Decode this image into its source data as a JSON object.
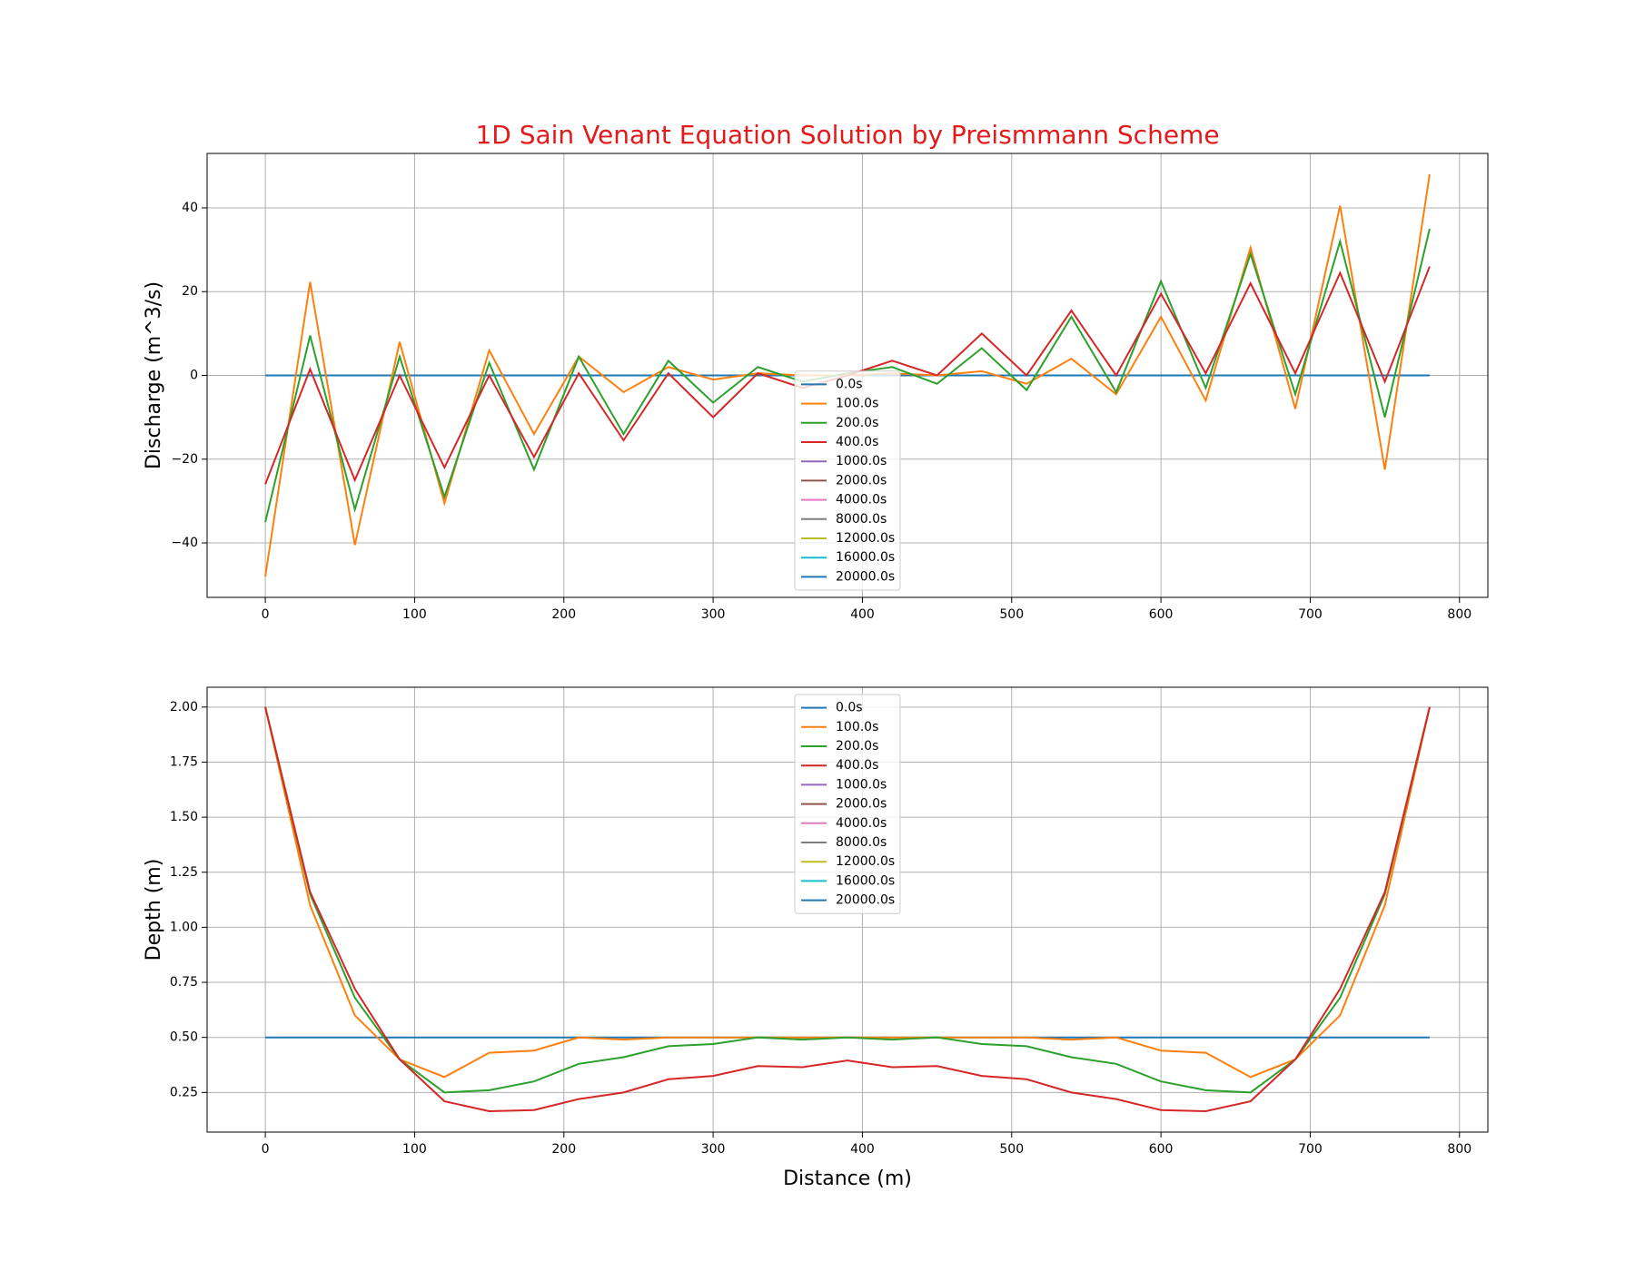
{
  "chart_data": [
    {
      "type": "line",
      "title": "1D Sain Venant Equation Solution by Preismmann Scheme",
      "ylabel": "Discharge (m^3/s)",
      "x": [
        0,
        30,
        60,
        90,
        120,
        150,
        180,
        210,
        240,
        270,
        300,
        330,
        360,
        390,
        420,
        450,
        480,
        510,
        540,
        570,
        600,
        630,
        660,
        690,
        720,
        750,
        780
      ],
      "xlim": [
        -39,
        819
      ],
      "xticks": [
        0,
        100,
        200,
        300,
        400,
        500,
        600,
        700,
        800
      ],
      "ylim": [
        -53,
        53
      ],
      "yticks": [
        {
          "value": -40,
          "label": "−40"
        },
        {
          "value": -20,
          "label": "−20"
        },
        0,
        20,
        40
      ],
      "grid": true,
      "legend": "lower center",
      "series": [
        {
          "name": "0.0s",
          "color": "#1f77b4",
          "values": [
            0,
            0,
            0,
            0,
            0,
            0,
            0,
            0,
            0,
            0,
            0,
            0,
            0,
            0,
            0,
            0,
            0,
            0,
            0,
            0,
            0,
            0,
            0,
            0,
            0,
            0,
            0
          ]
        },
        {
          "name": "100.0s",
          "color": "#ff7f0e",
          "values": [
            -48,
            22.3,
            -40.5,
            8,
            -30.5,
            6,
            -14,
            4.5,
            -4,
            2,
            -1,
            0.5,
            0,
            0,
            0.5,
            0,
            1,
            -2,
            4,
            -4.5,
            14,
            -6,
            30.5,
            -8,
            40.5,
            -22.5,
            48
          ]
        },
        {
          "name": "200.0s",
          "color": "#2ca02c",
          "values": [
            -35,
            9.5,
            -32,
            4.5,
            -29,
            3,
            -22.5,
            4.5,
            -14,
            3.5,
            -6.5,
            2,
            -1.5,
            0.5,
            2,
            -2,
            6.5,
            -3.5,
            14,
            -4,
            22.5,
            -3,
            29,
            -4.5,
            32,
            -10,
            35
          ]
        },
        {
          "name": "400.0s",
          "color": "#d62728",
          "values": [
            -26,
            1.5,
            -25,
            0,
            -22,
            0,
            -19.5,
            0.5,
            -15.5,
            0.5,
            -10,
            0.5,
            -3,
            0,
            3.5,
            0,
            10,
            0,
            15.5,
            0,
            19.5,
            0.5,
            22,
            0.5,
            24.5,
            -1.5,
            26
          ]
        },
        {
          "name": "1000.0s",
          "color": "#9467bd",
          "values": [
            null,
            null,
            null,
            null,
            null,
            null,
            null,
            null,
            null,
            null,
            null,
            null,
            null,
            null,
            null,
            null,
            null,
            null,
            null,
            null,
            null,
            null,
            null,
            null,
            null,
            null,
            null
          ]
        },
        {
          "name": "2000.0s",
          "color": "#8c564b",
          "values": [
            null,
            null,
            null,
            null,
            null,
            null,
            null,
            null,
            null,
            null,
            null,
            null,
            null,
            null,
            null,
            null,
            null,
            null,
            null,
            null,
            null,
            null,
            null,
            null,
            null,
            null,
            null
          ]
        },
        {
          "name": "4000.0s",
          "color": "#e377c2",
          "values": [
            null,
            null,
            null,
            null,
            null,
            null,
            null,
            null,
            null,
            null,
            null,
            null,
            null,
            null,
            null,
            null,
            null,
            null,
            null,
            null,
            null,
            null,
            null,
            null,
            null,
            null,
            null
          ]
        },
        {
          "name": "8000.0s",
          "color": "#7f7f7f",
          "values": [
            null,
            null,
            null,
            null,
            null,
            null,
            null,
            null,
            null,
            null,
            null,
            null,
            null,
            null,
            null,
            null,
            null,
            null,
            null,
            null,
            null,
            null,
            null,
            null,
            null,
            null,
            null
          ]
        },
        {
          "name": "12000.0s",
          "color": "#bcbd22",
          "values": [
            null,
            null,
            null,
            null,
            null,
            null,
            null,
            null,
            null,
            null,
            null,
            null,
            null,
            null,
            null,
            null,
            null,
            null,
            null,
            null,
            null,
            null,
            null,
            null,
            null,
            null,
            null
          ]
        },
        {
          "name": "16000.0s",
          "color": "#17becf",
          "values": [
            null,
            null,
            null,
            null,
            null,
            null,
            null,
            null,
            null,
            null,
            null,
            null,
            null,
            null,
            null,
            null,
            null,
            null,
            null,
            null,
            null,
            null,
            null,
            null,
            null,
            null,
            null
          ]
        },
        {
          "name": "20000.0s",
          "color": "#1f77b4",
          "values": [
            null,
            null,
            null,
            null,
            null,
            null,
            null,
            null,
            null,
            null,
            null,
            null,
            null,
            null,
            null,
            null,
            null,
            null,
            null,
            null,
            null,
            null,
            null,
            null,
            null,
            null,
            null
          ]
        }
      ]
    },
    {
      "type": "line",
      "ylabel": "Depth (m)",
      "xlabel": "Distance (m)",
      "x": [
        0,
        30,
        60,
        90,
        120,
        150,
        180,
        210,
        240,
        270,
        300,
        330,
        360,
        390,
        420,
        450,
        480,
        510,
        540,
        570,
        600,
        630,
        660,
        690,
        720,
        750,
        780
      ],
      "xlim": [
        -39,
        819
      ],
      "xticks": [
        0,
        100,
        200,
        300,
        400,
        500,
        600,
        700,
        800
      ],
      "ylim": [
        0.07,
        2.09
      ],
      "yticks": [
        0.25,
        {
          "value": 0.5,
          "label": "0.50"
        },
        0.75,
        {
          "value": 1.0,
          "label": "1.00"
        },
        1.25,
        {
          "value": 1.5,
          "label": "1.50"
        },
        1.75,
        {
          "value": 2.0,
          "label": "2.00"
        }
      ],
      "grid": true,
      "legend": "upper center",
      "series": [
        {
          "name": "0.0s",
          "color": "#1f77b4",
          "values": [
            0.5,
            0.5,
            0.5,
            0.5,
            0.5,
            0.5,
            0.5,
            0.5,
            0.5,
            0.5,
            0.5,
            0.5,
            0.5,
            0.5,
            0.5,
            0.5,
            0.5,
            0.5,
            0.5,
            0.5,
            0.5,
            0.5,
            0.5,
            0.5,
            0.5,
            0.5,
            0.5
          ]
        },
        {
          "name": "100.0s",
          "color": "#ff7f0e",
          "values": [
            2.0,
            1.1,
            0.6,
            0.4,
            0.32,
            0.43,
            0.44,
            0.5,
            0.49,
            0.5,
            0.5,
            0.5,
            0.5,
            0.5,
            0.5,
            0.5,
            0.5,
            0.5,
            0.49,
            0.5,
            0.44,
            0.43,
            0.32,
            0.4,
            0.6,
            1.1,
            2.0
          ]
        },
        {
          "name": "200.0s",
          "color": "#2ca02c",
          "values": [
            2.0,
            1.15,
            0.68,
            0.4,
            0.25,
            0.26,
            0.3,
            0.38,
            0.41,
            0.46,
            0.47,
            0.5,
            0.49,
            0.5,
            0.49,
            0.5,
            0.47,
            0.46,
            0.41,
            0.38,
            0.3,
            0.26,
            0.25,
            0.4,
            0.68,
            1.15,
            2.0
          ]
        },
        {
          "name": "400.0s",
          "color": "#d62728",
          "values": [
            2.0,
            1.16,
            0.72,
            0.4,
            0.21,
            0.165,
            0.17,
            0.22,
            0.25,
            0.31,
            0.325,
            0.37,
            0.365,
            0.395,
            0.365,
            0.37,
            0.325,
            0.31,
            0.25,
            0.22,
            0.17,
            0.165,
            0.21,
            0.4,
            0.72,
            1.16,
            2.0
          ]
        },
        {
          "name": "1000.0s",
          "color": "#9467bd",
          "values": [
            null,
            null,
            null,
            null,
            null,
            null,
            null,
            null,
            null,
            null,
            null,
            null,
            null,
            null,
            null,
            null,
            null,
            null,
            null,
            null,
            null,
            null,
            null,
            null,
            null,
            null,
            null
          ]
        },
        {
          "name": "2000.0s",
          "color": "#8c564b",
          "values": [
            null,
            null,
            null,
            null,
            null,
            null,
            null,
            null,
            null,
            null,
            null,
            null,
            null,
            null,
            null,
            null,
            null,
            null,
            null,
            null,
            null,
            null,
            null,
            null,
            null,
            null,
            null
          ]
        },
        {
          "name": "4000.0s",
          "color": "#e377c2",
          "values": [
            null,
            null,
            null,
            null,
            null,
            null,
            null,
            null,
            null,
            null,
            null,
            null,
            null,
            null,
            null,
            null,
            null,
            null,
            null,
            null,
            null,
            null,
            null,
            null,
            null,
            null,
            null
          ]
        },
        {
          "name": "8000.0s",
          "color": "#7f7f7f",
          "values": [
            null,
            null,
            null,
            null,
            null,
            null,
            null,
            null,
            null,
            null,
            null,
            null,
            null,
            null,
            null,
            null,
            null,
            null,
            null,
            null,
            null,
            null,
            null,
            null,
            null,
            null,
            null
          ]
        },
        {
          "name": "12000.0s",
          "color": "#bcbd22",
          "values": [
            null,
            null,
            null,
            null,
            null,
            null,
            null,
            null,
            null,
            null,
            null,
            null,
            null,
            null,
            null,
            null,
            null,
            null,
            null,
            null,
            null,
            null,
            null,
            null,
            null,
            null,
            null
          ]
        },
        {
          "name": "16000.0s",
          "color": "#17becf",
          "values": [
            null,
            null,
            null,
            null,
            null,
            null,
            null,
            null,
            null,
            null,
            null,
            null,
            null,
            null,
            null,
            null,
            null,
            null,
            null,
            null,
            null,
            null,
            null,
            null,
            null,
            null,
            null
          ]
        },
        {
          "name": "20000.0s",
          "color": "#1f77b4",
          "values": [
            null,
            null,
            null,
            null,
            null,
            null,
            null,
            null,
            null,
            null,
            null,
            null,
            null,
            null,
            null,
            null,
            null,
            null,
            null,
            null,
            null,
            null,
            null,
            null,
            null,
            null,
            null
          ]
        }
      ]
    }
  ]
}
